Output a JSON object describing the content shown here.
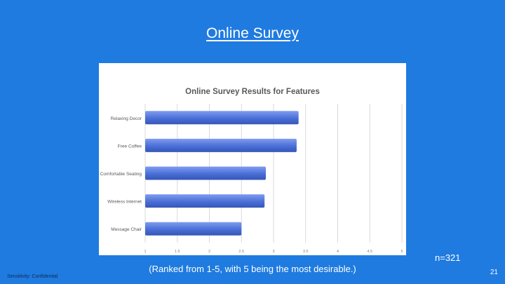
{
  "slide": {
    "title": "Online Survey",
    "sample_size": "n=321",
    "footnote": "(Ranked from 1-5, with 5 being the most desirable.)",
    "sensitivity": "Sensitivity: Confidential",
    "page_number": "21"
  },
  "colors": {
    "background": "#1f7be0",
    "bar": "#4a6fd6",
    "bar_highlight": "#7f9cf0",
    "grid": "#d9d9d9",
    "title_text": "#ffffff"
  },
  "chart_data": {
    "type": "bar",
    "orientation": "horizontal",
    "title": "Online Survey Results for Features",
    "categories": [
      "Relaxing Decor",
      "Free Coffee",
      "Comfortable Seating",
      "Wireless Internet",
      "Message Chair"
    ],
    "values": [
      3.39,
      3.36,
      2.88,
      2.86,
      2.5
    ],
    "xlim": [
      1,
      5
    ],
    "xticks": [
      1,
      1.5,
      2,
      2.5,
      3,
      3.5,
      4,
      4.5,
      5
    ],
    "xtick_labels": [
      "1",
      "1.5",
      "2",
      "2.5",
      "3",
      "3.5",
      "4",
      "4.5",
      "5"
    ],
    "grid": true,
    "legend": "none"
  }
}
